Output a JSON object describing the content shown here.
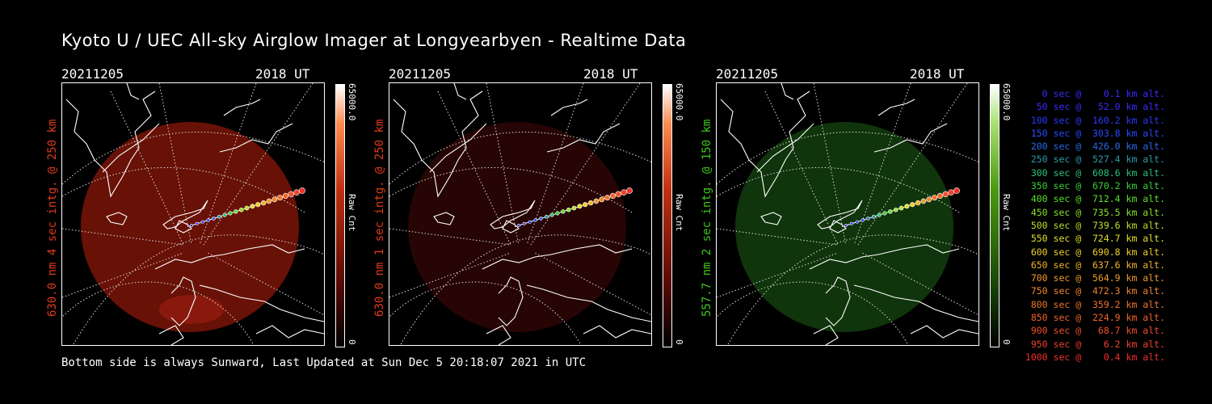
{
  "title": "Kyoto U / UEC All-sky Airglow Imager at Longyearbyen - Realtime Data",
  "footer": "Bottom side is always Sunward, Last Updated at Sun Dec  5 20:18:07 2021 in UTC",
  "panels": [
    {
      "date": "20211205",
      "time": "2018 UT",
      "side_label": "630.0 nm 4 sec intg. @ 250 km",
      "cbar_max": "65000.0",
      "cbar_min": "0",
      "cbar_unit": "Raw Cnt",
      "label_color": "#e03a1a",
      "tint": "#7a1408",
      "opacity": 0.85
    },
    {
      "date": "20211205",
      "time": "2018 UT",
      "side_label": "630.0 nm 1 sec intg. @ 250 km",
      "cbar_max": "65000.0",
      "cbar_min": "0",
      "cbar_unit": "Raw Cnt",
      "label_color": "#e03a1a",
      "tint": "#2a0604",
      "opacity": 0.9
    },
    {
      "date": "20211205",
      "time": "2018 UT",
      "side_label": "557.7 nm 2 sec intg. @ 150 km",
      "cbar_max": "65000.0",
      "cbar_min": "0",
      "cbar_unit": "Raw Cnt",
      "label_color": "#3ac81a",
      "tint": "#123a0c",
      "opacity": 0.9
    }
  ],
  "legend": [
    {
      "text": "   0 sec @    0.1 km alt.",
      "color": "#3a2aff"
    },
    {
      "text": "  50 sec @   52.0 km alt.",
      "color": "#3a2aff"
    },
    {
      "text": " 100 sec @  160.2 km alt.",
      "color": "#2a3aff"
    },
    {
      "text": " 150 sec @  303.8 km alt.",
      "color": "#2a4aff"
    },
    {
      "text": " 200 sec @  426.0 km alt.",
      "color": "#2a6ae8"
    },
    {
      "text": " 250 sec @  527.4 km alt.",
      "color": "#2a9aa8"
    },
    {
      "text": " 300 sec @  608.6 km alt.",
      "color": "#2ac07a"
    },
    {
      "text": " 350 sec @  670.2 km alt.",
      "color": "#3ad03a"
    },
    {
      "text": " 400 sec @  712.4 km alt.",
      "color": "#5ae02a"
    },
    {
      "text": " 450 sec @  735.5 km alt.",
      "color": "#8ae02a"
    },
    {
      "text": " 500 sec @  739.6 km alt.",
      "color": "#b8e02a"
    },
    {
      "text": " 550 sec @  724.7 km alt.",
      "color": "#e0e02a"
    },
    {
      "text": " 600 sec @  690.8 km alt.",
      "color": "#f0d02a"
    },
    {
      "text": " 650 sec @  637.6 km alt.",
      "color": "#f0b42a"
    },
    {
      "text": " 700 sec @  564.9 km alt.",
      "color": "#f09a2a"
    },
    {
      "text": " 750 sec @  472.3 km alt.",
      "color": "#f0862a"
    },
    {
      "text": " 800 sec @  359.2 km alt.",
      "color": "#f0742a"
    },
    {
      "text": " 850 sec @  224.9 km alt.",
      "color": "#f0642a"
    },
    {
      "text": " 900 sec @   68.7 km alt.",
      "color": "#f0502a"
    },
    {
      "text": " 950 sec @    6.2 km alt.",
      "color": "#f0402a"
    },
    {
      "text": "1000 sec @    0.4 km alt.",
      "color": "#f0302a"
    }
  ]
}
